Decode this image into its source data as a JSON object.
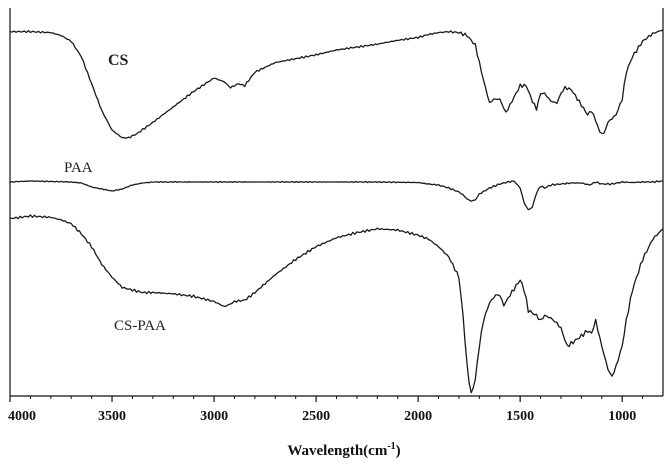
{
  "chart_data": {
    "type": "line",
    "title": "",
    "xlabel": "Wavelength(cm",
    "xlabel_sup": "-1",
    "xlabel_close": ")",
    "ylabel": "",
    "xlim": [
      4000,
      800
    ],
    "x_reversed": true,
    "y_axis_ticks": false,
    "grid": false,
    "xticks": [
      4000,
      3500,
      3000,
      2500,
      2000,
      1500,
      1000
    ],
    "xtick_labels": [
      "4000",
      "3500",
      "3000",
      "2500",
      "2000",
      "1500",
      "1000"
    ],
    "series": [
      {
        "name": "CS",
        "label_weight": "bold",
        "x": [
          4000,
          3900,
          3800,
          3750,
          3700,
          3650,
          3600,
          3550,
          3500,
          3450,
          3420,
          3380,
          3300,
          3200,
          3100,
          3000,
          2950,
          2920,
          2880,
          2850,
          2800,
          2700,
          2600,
          2500,
          2400,
          2300,
          2200,
          2100,
          2000,
          1950,
          1900,
          1850,
          1800,
          1760,
          1720,
          1680,
          1650,
          1630,
          1600,
          1570,
          1540,
          1500,
          1470,
          1440,
          1420,
          1400,
          1380,
          1350,
          1320,
          1300,
          1280,
          1250,
          1200,
          1170,
          1150,
          1130,
          1110,
          1090,
          1070,
          1050,
          1030,
          1000,
          980,
          950,
          900,
          850,
          800
        ],
        "y": [
          95,
          95,
          94.5,
          93,
          90,
          82,
          68,
          54,
          44,
          40,
          40,
          42,
          48,
          56,
          64,
          71,
          69,
          66,
          68,
          67,
          74,
          79,
          81,
          83,
          85.5,
          87,
          88.5,
          90.5,
          92,
          93.5,
          94.5,
          95,
          94.5,
          93,
          88,
          70,
          58,
          60,
          60,
          53,
          59,
          67,
          67,
          59,
          55,
          63,
          63,
          59,
          58,
          63,
          66,
          65,
          57,
          52,
          54,
          49,
          43,
          42,
          48,
          50,
          52,
          60,
          74,
          82,
          90,
          94,
          96
        ]
      },
      {
        "name": "PAA",
        "label_weight": "normal",
        "x": [
          4000,
          3900,
          3800,
          3700,
          3650,
          3600,
          3550,
          3500,
          3450,
          3400,
          3350,
          3300,
          3200,
          3000,
          2800,
          2500,
          2200,
          2000,
          1950,
          1900,
          1850,
          1800,
          1780,
          1760,
          1740,
          1720,
          1700,
          1650,
          1600,
          1560,
          1530,
          1500,
          1480,
          1460,
          1440,
          1420,
          1400,
          1380,
          1350,
          1300,
          1250,
          1200,
          1160,
          1130,
          1100,
          1050,
          1000,
          950,
          900,
          850,
          800
        ],
        "y": [
          36,
          37,
          36.5,
          36,
          35,
          31,
          29,
          27,
          29,
          33,
          35,
          36,
          36,
          36,
          36,
          36,
          36,
          35.5,
          34,
          33,
          30,
          26,
          23,
          19,
          17,
          18,
          24,
          30,
          34,
          36,
          37,
          30,
          15,
          8,
          11,
          25,
          32,
          30,
          33,
          34,
          35,
          35,
          33,
          36,
          34,
          34,
          36,
          35.5,
          36,
          36,
          37
        ]
      },
      {
        "name": "CS-PAA",
        "label_weight": "normal",
        "x": [
          4000,
          3900,
          3800,
          3750,
          3700,
          3650,
          3600,
          3550,
          3500,
          3450,
          3400,
          3350,
          3300,
          3200,
          3100,
          3000,
          2950,
          2920,
          2900,
          2850,
          2800,
          2700,
          2600,
          2500,
          2400,
          2300,
          2200,
          2100,
          2000,
          1950,
          1900,
          1850,
          1800,
          1780,
          1760,
          1740,
          1720,
          1700,
          1680,
          1650,
          1620,
          1600,
          1580,
          1550,
          1500,
          1480,
          1460,
          1420,
          1400,
          1380,
          1350,
          1320,
          1300,
          1270,
          1250,
          1200,
          1170,
          1150,
          1130,
          1100,
          1070,
          1050,
          1030,
          1000,
          980,
          950,
          900,
          850,
          800
        ],
        "y": [
          28,
          29,
          28.5,
          27.5,
          26,
          22,
          17,
          10,
          5,
          1,
          0,
          -1,
          -1,
          -1.5,
          -2.5,
          -4.5,
          -6.5,
          -5.5,
          -4.5,
          -4,
          -1,
          6,
          12,
          17,
          20.5,
          22.5,
          24,
          23.5,
          21.5,
          20,
          17,
          13,
          5,
          -10,
          -30,
          -41,
          -35,
          -22,
          -12,
          -5,
          -2,
          -2,
          -6,
          -2,
          4,
          0,
          -8,
          -10,
          -12,
          -10,
          -11,
          -13,
          -15,
          -22,
          -21,
          -18,
          -16,
          -17,
          -12,
          -22,
          -31,
          -34,
          -30,
          -22,
          -12,
          0,
          12,
          20,
          24
        ]
      }
    ]
  }
}
